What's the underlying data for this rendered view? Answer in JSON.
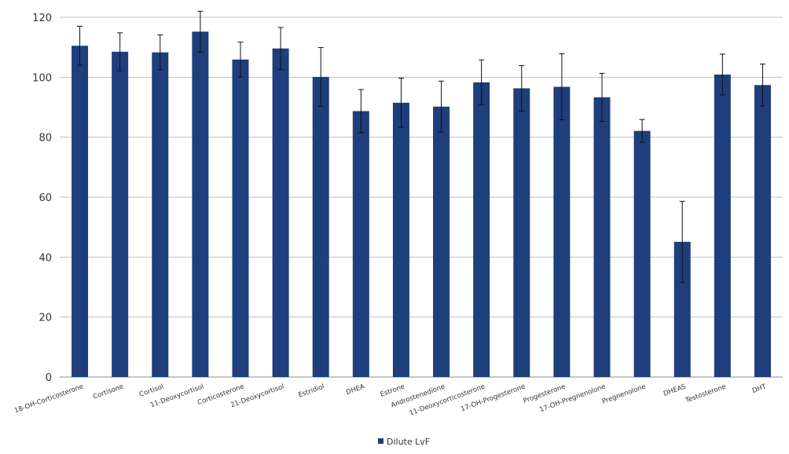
{
  "chart_data": {
    "type": "bar",
    "title": "",
    "xlabel": "",
    "ylabel": "",
    "ylim": [
      0,
      120
    ],
    "yticks": [
      0,
      20,
      40,
      60,
      80,
      100,
      120
    ],
    "grid": true,
    "legend_position": "bottom",
    "categories": [
      "18-OH-Corticosterone",
      "Cortisone",
      "Cortisol",
      "11-Deoxycortisol",
      "Corticosterone",
      "21-Deoxycortisol",
      "Estridiol",
      "DHEA",
      "Estrone",
      "Androstenedione",
      "11-Deoxycorticosterone",
      "17-OH-Progesterone",
      "Progesterone",
      "17-OH-Pregnenolone",
      "Pregnenolone",
      "DHEAS",
      "Testosterone",
      "DHT"
    ],
    "series": [
      {
        "name": "Dilute LvF",
        "color": "#1f3e7c",
        "values": [
          110.5,
          108.5,
          108.3,
          115.2,
          105.9,
          109.6,
          100.1,
          88.7,
          91.5,
          90.2,
          98.3,
          96.3,
          96.8,
          93.3,
          82.1,
          45.1,
          100.9,
          97.4
        ],
        "errors": [
          6.5,
          6.3,
          5.8,
          6.8,
          5.8,
          7.0,
          9.8,
          7.2,
          8.2,
          8.5,
          7.5,
          7.6,
          11.0,
          8.0,
          3.8,
          13.5,
          6.8,
          7.0
        ]
      }
    ]
  }
}
